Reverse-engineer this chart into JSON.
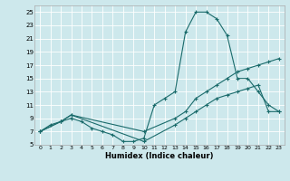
{
  "xlabel": "Humidex (Indice chaleur)",
  "xlim": [
    -0.5,
    23.5
  ],
  "ylim": [
    5,
    26
  ],
  "yticks": [
    5,
    7,
    9,
    11,
    13,
    15,
    17,
    19,
    21,
    23,
    25
  ],
  "xticks": [
    0,
    1,
    2,
    3,
    4,
    5,
    6,
    7,
    8,
    9,
    10,
    11,
    12,
    13,
    14,
    15,
    16,
    17,
    18,
    19,
    20,
    21,
    22,
    23
  ],
  "bg_color": "#cde8ec",
  "grid_color": "#ffffff",
  "line_color": "#1a6b6b",
  "line1_x": [
    0,
    1,
    2,
    3,
    4,
    5,
    6,
    7,
    8,
    9,
    10,
    11,
    12,
    13,
    14,
    15,
    16,
    17,
    18,
    19,
    20,
    21,
    22,
    23
  ],
  "line1_y": [
    7,
    8,
    8.5,
    9,
    8.5,
    7.5,
    7,
    6.5,
    5.5,
    5.5,
    6,
    11,
    12,
    13,
    22,
    25,
    25,
    24,
    21.5,
    15,
    15,
    13,
    11,
    10
  ],
  "line2_x": [
    0,
    2,
    3,
    10,
    13,
    14,
    15,
    16,
    17,
    18,
    19,
    20,
    21,
    22,
    23
  ],
  "line2_y": [
    7,
    8.5,
    9.5,
    7,
    9,
    10,
    12,
    13,
    14,
    15,
    16,
    16.5,
    17,
    17.5,
    18
  ],
  "line3_x": [
    0,
    2,
    3,
    10,
    13,
    14,
    15,
    16,
    17,
    18,
    19,
    20,
    21,
    22,
    23
  ],
  "line3_y": [
    7,
    8.5,
    9.5,
    5.5,
    8,
    9,
    10,
    11,
    12,
    12.5,
    13,
    13.5,
    14,
    10,
    10
  ]
}
